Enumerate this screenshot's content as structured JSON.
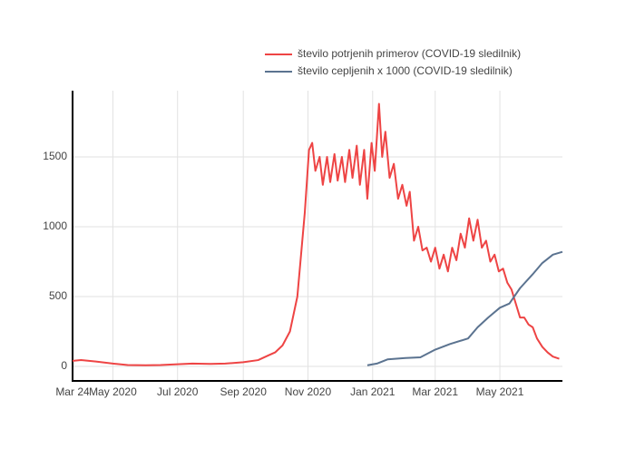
{
  "chart_data": {
    "type": "line",
    "series": [
      {
        "name": "število potrjenih primerov (COVID-19 sledilnik)",
        "color": "#ee4444",
        "x": [
          "2020-03-24",
          "2020-04-01",
          "2020-04-15",
          "2020-05-01",
          "2020-05-15",
          "2020-06-01",
          "2020-06-15",
          "2020-07-01",
          "2020-07-15",
          "2020-08-01",
          "2020-08-15",
          "2020-09-01",
          "2020-09-15",
          "2020-09-25",
          "2020-10-01",
          "2020-10-08",
          "2020-10-15",
          "2020-10-22",
          "2020-10-29",
          "2020-11-02",
          "2020-11-05",
          "2020-11-08",
          "2020-11-12",
          "2020-11-15",
          "2020-11-19",
          "2020-11-22",
          "2020-11-26",
          "2020-11-29",
          "2020-12-03",
          "2020-12-06",
          "2020-12-10",
          "2020-12-13",
          "2020-12-17",
          "2020-12-20",
          "2020-12-24",
          "2020-12-27",
          "2020-12-31",
          "2021-01-03",
          "2021-01-07",
          "2021-01-10",
          "2021-01-13",
          "2021-01-17",
          "2021-01-21",
          "2021-01-25",
          "2021-01-29",
          "2021-02-02",
          "2021-02-05",
          "2021-02-09",
          "2021-02-13",
          "2021-02-17",
          "2021-02-21",
          "2021-02-25",
          "2021-03-01",
          "2021-03-05",
          "2021-03-09",
          "2021-03-13",
          "2021-03-17",
          "2021-03-21",
          "2021-03-25",
          "2021-03-29",
          "2021-04-02",
          "2021-04-06",
          "2021-04-10",
          "2021-04-14",
          "2021-04-18",
          "2021-04-22",
          "2021-04-26",
          "2021-04-30",
          "2021-05-04",
          "2021-05-08",
          "2021-05-12",
          "2021-05-16",
          "2021-05-20",
          "2021-05-24",
          "2021-05-28",
          "2021-06-01",
          "2021-06-05",
          "2021-06-10",
          "2021-06-15",
          "2021-06-20",
          "2021-06-26"
        ],
        "values": [
          40,
          45,
          35,
          20,
          10,
          8,
          10,
          15,
          20,
          18,
          20,
          30,
          45,
          80,
          100,
          150,
          250,
          500,
          1100,
          1550,
          1600,
          1400,
          1500,
          1300,
          1500,
          1320,
          1520,
          1330,
          1500,
          1320,
          1550,
          1350,
          1580,
          1300,
          1550,
          1200,
          1600,
          1400,
          1880,
          1500,
          1680,
          1350,
          1450,
          1200,
          1300,
          1150,
          1250,
          900,
          1000,
          830,
          850,
          750,
          850,
          700,
          800,
          680,
          850,
          760,
          950,
          850,
          1060,
          900,
          1050,
          850,
          900,
          750,
          800,
          680,
          700,
          600,
          550,
          450,
          350,
          350,
          300,
          280,
          200,
          140,
          100,
          70,
          55
        ]
      },
      {
        "name": "število cepljenih x 1000 (COVID-19 sledilnik)",
        "color": "#5b7390",
        "x": [
          "2020-12-27",
          "2021-01-05",
          "2021-01-15",
          "2021-02-01",
          "2021-02-15",
          "2021-03-01",
          "2021-03-15",
          "2021-04-01",
          "2021-04-10",
          "2021-04-20",
          "2021-05-01",
          "2021-05-10",
          "2021-05-20",
          "2021-06-01",
          "2021-06-10",
          "2021-06-20",
          "2021-06-29"
        ],
        "values": [
          8,
          20,
          50,
          60,
          65,
          120,
          160,
          200,
          280,
          350,
          420,
          450,
          560,
          660,
          740,
          800,
          820
        ]
      }
    ],
    "xlim": [
      "2020-03-24",
      "2021-06-29"
    ],
    "xticks": [
      {
        "value": "2020-03-24",
        "label": "Mar 24"
      },
      {
        "value": "2020-05-01",
        "label": "May 2020"
      },
      {
        "value": "2020-07-01",
        "label": "Jul 2020"
      },
      {
        "value": "2020-09-01",
        "label": "Sep 2020"
      },
      {
        "value": "2020-11-01",
        "label": "Nov 2020"
      },
      {
        "value": "2021-01-01",
        "label": "Jan 2021"
      },
      {
        "value": "2021-03-01",
        "label": "Mar 2021"
      },
      {
        "value": "2021-05-01",
        "label": "May 2021"
      }
    ],
    "ylim": [
      -104,
      1974
    ],
    "yticks": [
      0,
      500,
      1000,
      1500
    ],
    "grid": true
  }
}
